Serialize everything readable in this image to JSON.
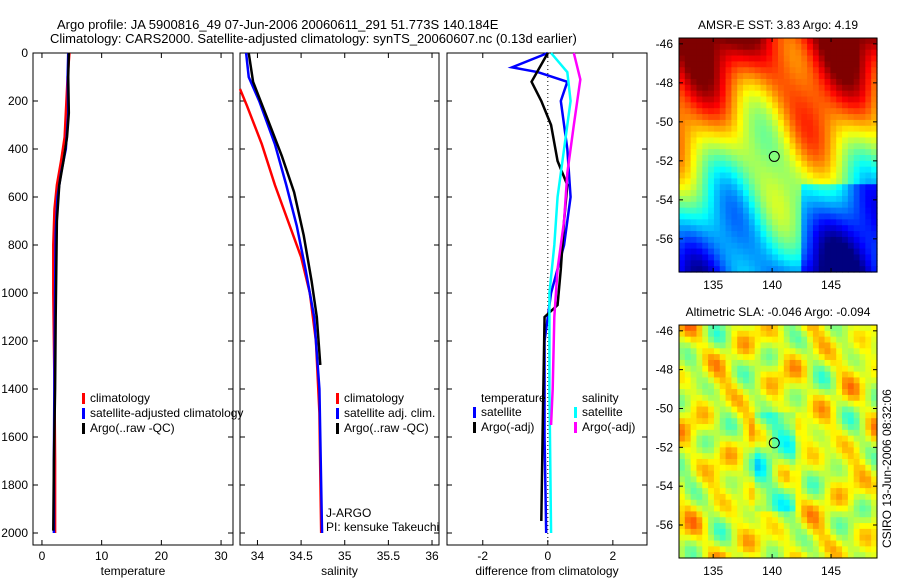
{
  "title_line1": "Argo profile: JA 5900816_49 07-Jun-2006 20060611_291 51.773S 140.184E",
  "title_line2": "Climatology: CARS2000. Satellite-adjusted climatology: synTS_20060607.nc (0.13d earlier)",
  "side_label": "CSIRO 13-Jun-2006 08:32:06",
  "colors": {
    "climatology": "#ff0000",
    "satellite": "#0000ff",
    "argo": "#000000",
    "sal_satellite": "#00ffff",
    "sal_argo": "#ff00ff"
  },
  "chart_data": [
    {
      "type": "line",
      "xlabel": "temperature",
      "ylabel": "",
      "xlim": [
        -1.5,
        32
      ],
      "ylim": [
        2050,
        0
      ],
      "xticks": [
        "0",
        "10",
        "20",
        "30"
      ],
      "xtick_values": [
        0,
        10,
        20,
        30
      ],
      "yticks": [
        "0",
        "200",
        "400",
        "600",
        "800",
        "1000",
        "1200",
        "1400",
        "1600",
        "1800",
        "2000"
      ],
      "legend": [
        "climatology",
        "satellite-adjusted climatology",
        "Argo(..raw -QC)"
      ],
      "series": [
        {
          "name": "climatology",
          "color": "#ff0000",
          "points": [
            [
              4.6,
              0
            ],
            [
              4.3,
              100
            ],
            [
              4.1,
              200
            ],
            [
              3.8,
              350
            ],
            [
              3.2,
              450
            ],
            [
              2.5,
              550
            ],
            [
              2.1,
              650
            ],
            [
              1.9,
              800
            ],
            [
              1.9,
              1000
            ],
            [
              2.0,
              1200
            ],
            [
              2.1,
              1400
            ],
            [
              2.2,
              1700
            ],
            [
              2.2,
              2000
            ]
          ]
        },
        {
          "name": "satellite-adjusted climatology",
          "color": "#0000ff",
          "points": [
            [
              4.4,
              0
            ],
            [
              4.3,
              100
            ],
            [
              4.4,
              250
            ],
            [
              4.0,
              400
            ],
            [
              3.2,
              500
            ],
            [
              2.6,
              600
            ],
            [
              2.3,
              750
            ],
            [
              2.2,
              1000
            ],
            [
              2.1,
              1300
            ],
            [
              2.0,
              1700
            ],
            [
              2.0,
              2000
            ]
          ]
        },
        {
          "name": "Argo(..raw -QC)",
          "color": "#000000",
          "points": [
            [
              4.5,
              0
            ],
            [
              4.4,
              100
            ],
            [
              4.5,
              250
            ],
            [
              4.2,
              350
            ],
            [
              3.6,
              450
            ],
            [
              2.9,
              550
            ],
            [
              2.5,
              700
            ],
            [
              2.4,
              900
            ],
            [
              2.3,
              1100
            ],
            [
              2.2,
              1400
            ],
            [
              2.0,
              1700
            ],
            [
              1.9,
              1990
            ]
          ]
        }
      ]
    },
    {
      "type": "line",
      "xlabel": "salinity",
      "xlim": [
        33.8,
        36.08
      ],
      "ylim": [
        2050,
        0
      ],
      "xticks": [
        "34",
        "34.5",
        "35",
        "35.5",
        "36"
      ],
      "xtick_values": [
        34,
        34.5,
        35,
        35.5,
        36
      ],
      "legend": [
        "climatology",
        "satellite adj. clim.",
        "Argo(..raw -QC)"
      ],
      "annotations": [
        "J-ARGO",
        "PI: kensuke Takeuchi"
      ],
      "series": [
        {
          "name": "climatology",
          "color": "#ff0000",
          "points": [
            [
              33.8,
              150
            ],
            [
              33.88,
              220
            ],
            [
              34.05,
              380
            ],
            [
              34.2,
              550
            ],
            [
              34.35,
              700
            ],
            [
              34.5,
              850
            ],
            [
              34.6,
              1000
            ],
            [
              34.67,
              1200
            ],
            [
              34.71,
              1500
            ],
            [
              34.73,
              2000
            ]
          ]
        },
        {
          "name": "satellite adj. clim.",
          "color": "#0000ff",
          "points": [
            [
              33.87,
              0
            ],
            [
              33.9,
              100
            ],
            [
              34.02,
              200
            ],
            [
              34.2,
              380
            ],
            [
              34.33,
              550
            ],
            [
              34.45,
              720
            ],
            [
              34.55,
              900
            ],
            [
              34.65,
              1100
            ],
            [
              34.71,
              1400
            ],
            [
              34.74,
              2000
            ]
          ]
        },
        {
          "name": "Argo(..raw -QC)",
          "color": "#000000",
          "points": [
            [
              33.9,
              0
            ],
            [
              33.95,
              120
            ],
            [
              34.1,
              260
            ],
            [
              34.28,
              430
            ],
            [
              34.42,
              580
            ],
            [
              34.53,
              760
            ],
            [
              34.62,
              950
            ],
            [
              34.68,
              1100
            ],
            [
              34.72,
              1300
            ]
          ]
        }
      ]
    },
    {
      "type": "line",
      "xlabel": "difference from climatology",
      "xlim": [
        -3.1,
        3.05
      ],
      "ylim": [
        2050,
        0
      ],
      "xticks": [
        "-2",
        "0",
        "2"
      ],
      "xtick_values": [
        -2,
        0,
        2
      ],
      "legend": {
        "temperature_header": "temperature",
        "salinity_header": "salinity",
        "temp_satellite": "satellite",
        "temp_argo": "Argo(-adj)",
        "sal_satellite": "satellite",
        "sal_argo": "Argo(-adj)"
      },
      "series": [
        {
          "name": "temperature satellite",
          "color": "#0000ff",
          "points": [
            [
              0,
              0
            ],
            [
              -1.1,
              60
            ],
            [
              -0.3,
              80
            ],
            [
              0.6,
              120
            ],
            [
              0.4,
              200
            ],
            [
              0.6,
              400
            ],
            [
              0.7,
              600
            ],
            [
              0.5,
              800
            ],
            [
              0.1,
              1000
            ],
            [
              -0.1,
              1200
            ],
            [
              -0.1,
              1600
            ],
            [
              -0.05,
              2000
            ]
          ]
        },
        {
          "name": "temperature Argo(-adj)",
          "color": "#000000",
          "points": [
            [
              0,
              0
            ],
            [
              -0.5,
              120
            ],
            [
              -0.2,
              200
            ],
            [
              0.1,
              300
            ],
            [
              0.3,
              450
            ],
            [
              0.6,
              550
            ],
            [
              0.5,
              700
            ],
            [
              0.4,
              900
            ],
            [
              0.3,
              1050
            ],
            [
              -0.1,
              1100
            ],
            [
              -0.15,
              1500
            ],
            [
              -0.2,
              1950
            ]
          ]
        },
        {
          "name": "salinity satellite",
          "color": "#00ffff",
          "points": [
            [
              0.1,
              0
            ],
            [
              0.6,
              80
            ],
            [
              0.7,
              200
            ],
            [
              0.5,
              400
            ],
            [
              0.3,
              600
            ],
            [
              0.2,
              800
            ],
            [
              0.05,
              1000
            ],
            [
              0.05,
              1400
            ],
            [
              0.1,
              2000
            ]
          ]
        },
        {
          "name": "salinity Argo(-adj)",
          "color": "#ff00ff",
          "points": [
            [
              0.8,
              0
            ],
            [
              1.0,
              110
            ],
            [
              0.8,
              300
            ],
            [
              0.6,
              500
            ],
            [
              0.5,
              700
            ],
            [
              0.3,
              900
            ],
            [
              0.2,
              1100
            ],
            [
              0.15,
              1400
            ],
            [
              0.1,
              1550
            ]
          ]
        }
      ]
    },
    {
      "type": "heatmap",
      "title": "AMSR-E SST: 3.83 Argo: 4.19",
      "xlim": [
        132.1,
        148.9
      ],
      "ylim": [
        -57.7,
        -45.7
      ],
      "xticks": [
        "135",
        "140",
        "145"
      ],
      "yticks": [
        "-46",
        "-48",
        "-50",
        "-52",
        "-54",
        "-56"
      ],
      "marker": [
        140.184,
        -51.773
      ]
    },
    {
      "type": "heatmap",
      "title": "Altimetric SLA: -0.046 Argo: -0.094",
      "xlim": [
        132.1,
        148.9
      ],
      "ylim": [
        -57.7,
        -45.7
      ],
      "xticks": [
        "135",
        "140",
        "145"
      ],
      "yticks": [
        "-46",
        "-48",
        "-50",
        "-52",
        "-54",
        "-56"
      ],
      "marker": [
        140.184,
        -51.773
      ]
    }
  ]
}
